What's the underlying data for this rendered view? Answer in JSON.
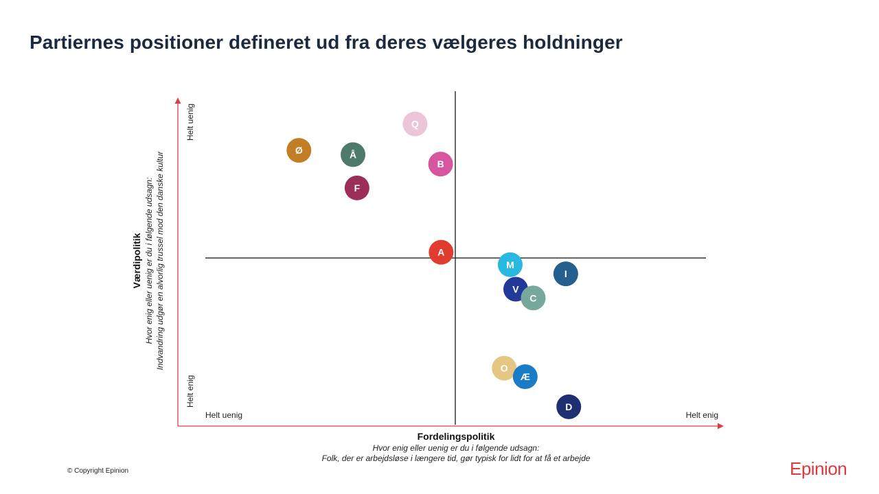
{
  "title": "Partiernes positioner defineret ud fra deres vælgeres holdninger",
  "copyright": "© Copyright Epinion",
  "logo_text": "Epinion",
  "chart_data": {
    "type": "scatter",
    "title": "",
    "xlabel": "Fordelingspolitik",
    "xlabel_sub1": "Hvor enig eller uenig er du i følgende udsagn:",
    "xlabel_sub2": "Folk, der er arbejdsløse i længere tid, gør typisk for lidt for at få et arbejde",
    "x_low_label": "Helt uenig",
    "x_high_label": "Helt enig",
    "ylabel": "Værdipolitik",
    "ylabel_sub1": "Hvor enig eller uenig er du i følgende udsagn:",
    "ylabel_sub2": "Indvandring  udgør en alvorlig trussel mod den danske kultur",
    "y_low_label": "Helt enig",
    "y_high_label": "Helt uenig",
    "xlim": [
      0,
      100
    ],
    "ylim": [
      0,
      100
    ],
    "grid": false,
    "legend": "none",
    "axis_color": "#d9413e",
    "crosshair_color": "#333333",
    "points": [
      {
        "label": "Q",
        "x": 41.9,
        "y": 92.1,
        "color": "#ecc6d8"
      },
      {
        "label": "Ø",
        "x": 18.7,
        "y": 84.0,
        "color": "#c27e24"
      },
      {
        "label": "Å",
        "x": 29.5,
        "y": 82.7,
        "color": "#4e7a6b"
      },
      {
        "label": "B",
        "x": 47.0,
        "y": 79.8,
        "color": "#d6559f"
      },
      {
        "label": "F",
        "x": 30.3,
        "y": 72.5,
        "color": "#9c2e5a"
      },
      {
        "label": "A",
        "x": 47.1,
        "y": 52.8,
        "color": "#e03c30"
      },
      {
        "label": "M",
        "x": 60.9,
        "y": 49.0,
        "color": "#28b8e0"
      },
      {
        "label": "I",
        "x": 72.0,
        "y": 46.2,
        "color": "#255f8d"
      },
      {
        "label": "V",
        "x": 62.0,
        "y": 41.5,
        "color": "#23399a"
      },
      {
        "label": "C",
        "x": 65.5,
        "y": 38.8,
        "color": "#76a89b"
      },
      {
        "label": "O",
        "x": 59.7,
        "y": 17.3,
        "color": "#e6c683"
      },
      {
        "label": "Æ",
        "x": 63.9,
        "y": 14.7,
        "color": "#1a7cc6"
      },
      {
        "label": "D",
        "x": 72.6,
        "y": 5.5,
        "color": "#1e2f72"
      }
    ]
  }
}
